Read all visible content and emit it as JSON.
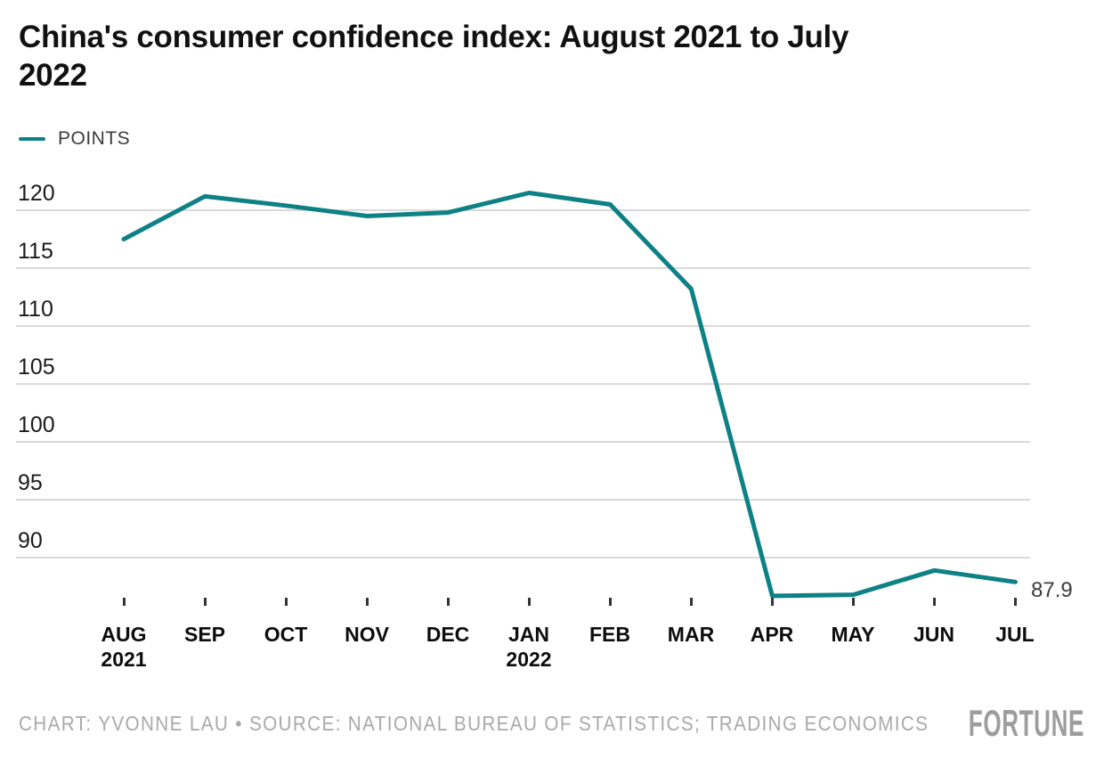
{
  "header": {
    "title": "China's consumer confidence index: August 2021 to July 2022",
    "title_lines": [
      "China's consumer confidence index: August 2021 to July",
      "2022"
    ]
  },
  "legend": {
    "label": "POINTS"
  },
  "chart_data": {
    "type": "line",
    "title": "China's consumer confidence index: August 2021 to July 2022",
    "categories": [
      "AUG 2021",
      "SEP",
      "OCT",
      "NOV",
      "DEC",
      "JAN 2022",
      "FEB",
      "MAR",
      "APR",
      "MAY",
      "JUN",
      "JUL"
    ],
    "x_tick_labels": [
      [
        "AUG",
        "2021"
      ],
      [
        "SEP",
        ""
      ],
      [
        "OCT",
        ""
      ],
      [
        "NOV",
        ""
      ],
      [
        "DEC",
        ""
      ],
      [
        "JAN",
        "2022"
      ],
      [
        "FEB",
        ""
      ],
      [
        "MAR",
        ""
      ],
      [
        "APR",
        ""
      ],
      [
        "MAY",
        ""
      ],
      [
        "JUN",
        ""
      ],
      [
        "JUL",
        ""
      ]
    ],
    "series": [
      {
        "name": "POINTS",
        "values": [
          117.5,
          121.2,
          120.4,
          119.5,
          119.8,
          121.5,
          120.5,
          113.2,
          86.7,
          86.8,
          88.9,
          87.9
        ]
      }
    ],
    "y_ticks": [
      120,
      115,
      110,
      105,
      100,
      95,
      90
    ],
    "y_gridline_range": [
      90,
      120
    ],
    "end_label": "87.9",
    "grid": "horizontal",
    "legend_position": "top-left",
    "line_color": "#0D8185"
  },
  "footer": {
    "credit": "CHART: YVONNE LAU • SOURCE: NATIONAL BUREAU OF STATISTICS; TRADING ECONOMICS",
    "brand": "FORTUNE"
  },
  "colors": {
    "line": "#0D8185",
    "grid": "#D9D9D9",
    "tick": "#333333",
    "title": "#111111",
    "axis_label": "#1A1A1A",
    "end_label": "#3D3D3D",
    "footer": "#A9A9A9",
    "brand": "#9D9D9D"
  }
}
